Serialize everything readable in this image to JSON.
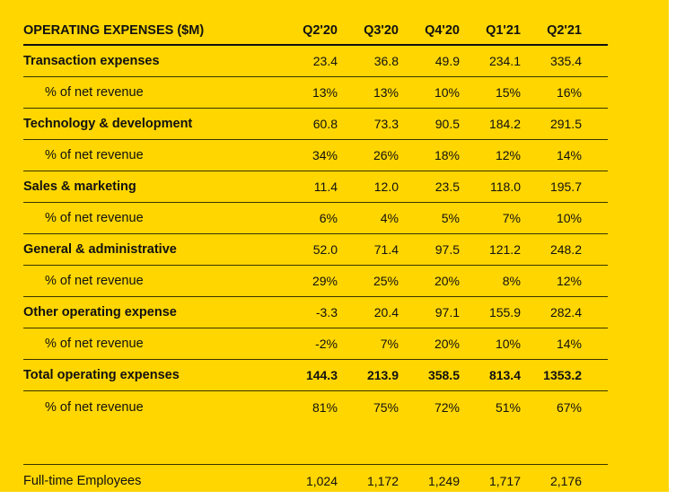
{
  "table": {
    "title": "OPERATING EXPENSES ($M)",
    "columns": [
      "Q2'20",
      "Q3'20",
      "Q4'20",
      "Q1'21",
      "Q2'21"
    ],
    "rows": [
      {
        "label": "Transaction expenses",
        "values": [
          "23.4",
          "36.8",
          "49.9",
          "234.1",
          "335.4"
        ]
      },
      {
        "label": "% of net revenue",
        "values": [
          "13%",
          "13%",
          "10%",
          "15%",
          "16%"
        ]
      },
      {
        "label": "Technology & development",
        "values": [
          "60.8",
          "73.3",
          "90.5",
          "184.2",
          "291.5"
        ]
      },
      {
        "label": "% of net revenue",
        "values": [
          "34%",
          "26%",
          "18%",
          "12%",
          "14%"
        ]
      },
      {
        "label": "Sales & marketing",
        "values": [
          "11.4",
          "12.0",
          "23.5",
          "118.0",
          "195.7"
        ]
      },
      {
        "label": "% of net revenue",
        "values": [
          "6%",
          "4%",
          "5%",
          "7%",
          "10%"
        ]
      },
      {
        "label": "General & administrative",
        "values": [
          "52.0",
          "71.4",
          "97.5",
          "121.2",
          "248.2"
        ]
      },
      {
        "label": "% of net revenue",
        "values": [
          "29%",
          "25%",
          "20%",
          "8%",
          "12%"
        ]
      },
      {
        "label": "Other operating expense",
        "values": [
          "-3.3",
          "20.4",
          "97.1",
          "155.9",
          "282.4"
        ]
      },
      {
        "label": "% of net revenue",
        "values": [
          "-2%",
          "7%",
          "20%",
          "10%",
          "14%"
        ]
      },
      {
        "label": "Total operating expenses",
        "values": [
          "144.3",
          "213.9",
          "358.5",
          "813.4",
          "1353.2"
        ]
      },
      {
        "label": "% of net revenue",
        "values": [
          "81%",
          "75%",
          "72%",
          "51%",
          "67%"
        ]
      }
    ],
    "employees": {
      "label": "Full-time Employees",
      "values": [
        "1,024",
        "1,172",
        "1,249",
        "1,717",
        "2,176"
      ]
    }
  },
  "colors": {
    "background": "#ffd600",
    "text": "#111111"
  }
}
